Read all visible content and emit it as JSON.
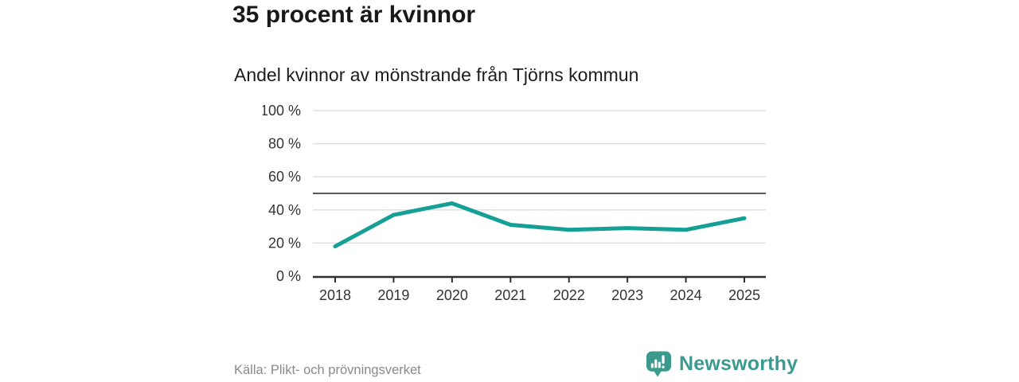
{
  "header": {
    "title": "35 procent är kvinnor",
    "subtitle": "Andel kvinnor av mönstrande från Tjörns kommun"
  },
  "chart_data": {
    "type": "line",
    "title": "35 procent är kvinnor",
    "subtitle": "Andel kvinnor av mönstrande från Tjörns kommun",
    "categories": [
      "2018",
      "2019",
      "2020",
      "2021",
      "2022",
      "2023",
      "2024",
      "2025"
    ],
    "series": [
      {
        "name": "Andel kvinnor av mönstrande",
        "values": [
          18,
          37,
          44,
          31,
          28,
          29,
          28,
          35
        ]
      }
    ],
    "unit": "%",
    "xlabel": "",
    "ylabel": "",
    "ylim": [
      0,
      100
    ],
    "yticks": [
      0,
      20,
      40,
      60,
      80,
      100
    ],
    "ytick_labels": [
      "0 %",
      "20 %",
      "40 %",
      "60 %",
      "80 %",
      "100 %"
    ],
    "reference_line": 50,
    "grid": "horizontal",
    "legend": "none",
    "line_color": "#16a095",
    "reference_line_color": "#5a5a5a",
    "grid_color": "#dcdcdc",
    "axis_color": "#2e2e2e",
    "tick_label_color": "#333333"
  },
  "footer": {
    "source": "Källa: Plikt- och prövningsverket",
    "brand": "Newsworthy",
    "brand_color": "#3a9a8e",
    "brand_icon": "bar-chart-speech-bubble-icon"
  }
}
